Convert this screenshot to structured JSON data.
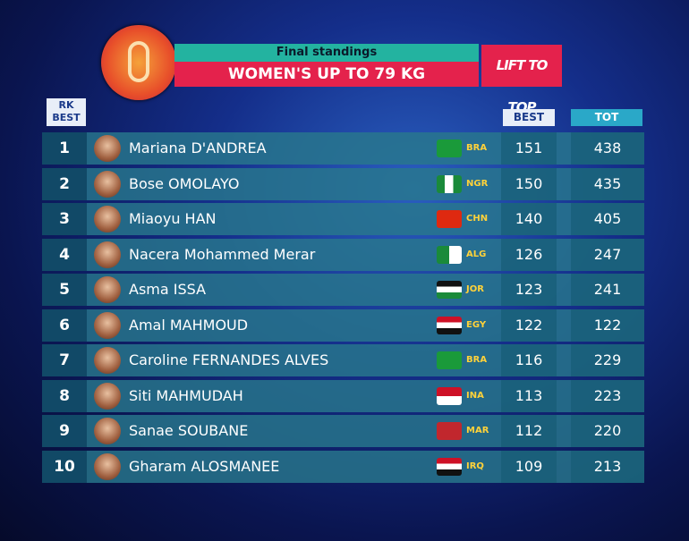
{
  "header": {
    "title": "Final standings",
    "subtitle": "WOMEN'S UP TO 79 KG",
    "logo": "LIFT TO TOP"
  },
  "table": {
    "columns": {
      "rank": [
        "RK",
        "BEST"
      ],
      "best": "BEST",
      "total": "TOT"
    },
    "rows": [
      [
        "1",
        "Mariana D'ANDREA",
        "BRA",
        "151",
        "438"
      ],
      [
        "2",
        "Bose OMOLAYO",
        "NGR",
        "150",
        "435"
      ],
      [
        "3",
        "Miaoyu HAN",
        "CHN",
        "140",
        "405"
      ],
      [
        "4",
        "Nacera Mohammed Merar",
        "ALG",
        "126",
        "247"
      ],
      [
        "5",
        "Asma ISSA",
        "JOR",
        "123",
        "241"
      ],
      [
        "6",
        "Amal MAHMOUD",
        "EGY",
        "122",
        "122"
      ],
      [
        "7",
        "Caroline FERNANDES ALVES",
        "BRA",
        "116",
        "229"
      ],
      [
        "8",
        "Siti MAHMUDAH",
        "INA",
        "113",
        "223"
      ],
      [
        "9",
        "Sanae SOUBANE",
        "MAR",
        "112",
        "220"
      ],
      [
        "10",
        "Gharam ALOSMANEE",
        "IRQ",
        "109",
        "213"
      ]
    ]
  }
}
